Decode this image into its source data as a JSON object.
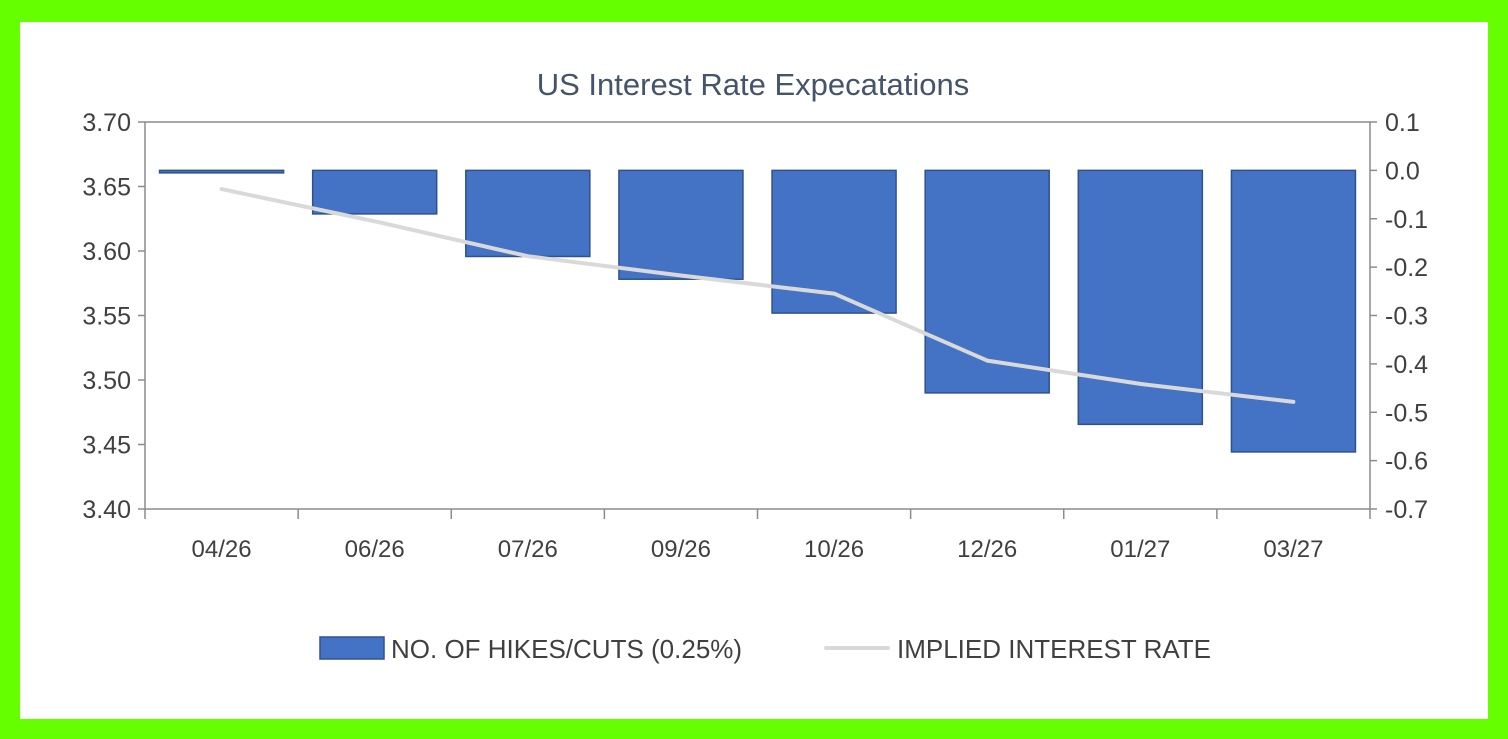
{
  "chart_data": {
    "type": "bar",
    "title": "US Interest Rate Expecatations",
    "categories": [
      "04/26",
      "06/26",
      "07/26",
      "09/26",
      "10/26",
      "12/26",
      "01/27",
      "03/27"
    ],
    "series": [
      {
        "name": "NO. OF HIKES/CUTS (0.25%)",
        "type": "bar",
        "axis": "right",
        "color": "#4472c4",
        "values": [
          -0.005,
          -0.09,
          -0.178,
          -0.225,
          -0.295,
          -0.46,
          -0.525,
          -0.582
        ]
      },
      {
        "name": "IMPLIED INTEREST RATE",
        "type": "line",
        "axis": "left",
        "color": "#d9d9d9",
        "values": [
          3.648,
          3.623,
          3.596,
          3.581,
          3.567,
          3.515,
          3.497,
          3.483
        ]
      }
    ],
    "y_left": {
      "ylim": [
        3.4,
        3.7
      ],
      "ticks": [
        "3.70",
        "3.65",
        "3.60",
        "3.55",
        "3.50",
        "3.45",
        "3.40"
      ]
    },
    "y_right": {
      "ylim": [
        -0.7,
        0.1
      ],
      "ticks": [
        "0.1",
        "0.0",
        "-0.1",
        "-0.2",
        "-0.3",
        "-0.4",
        "-0.5",
        "-0.6",
        "-0.7"
      ]
    },
    "grid": false,
    "legend_position": "bottom"
  }
}
